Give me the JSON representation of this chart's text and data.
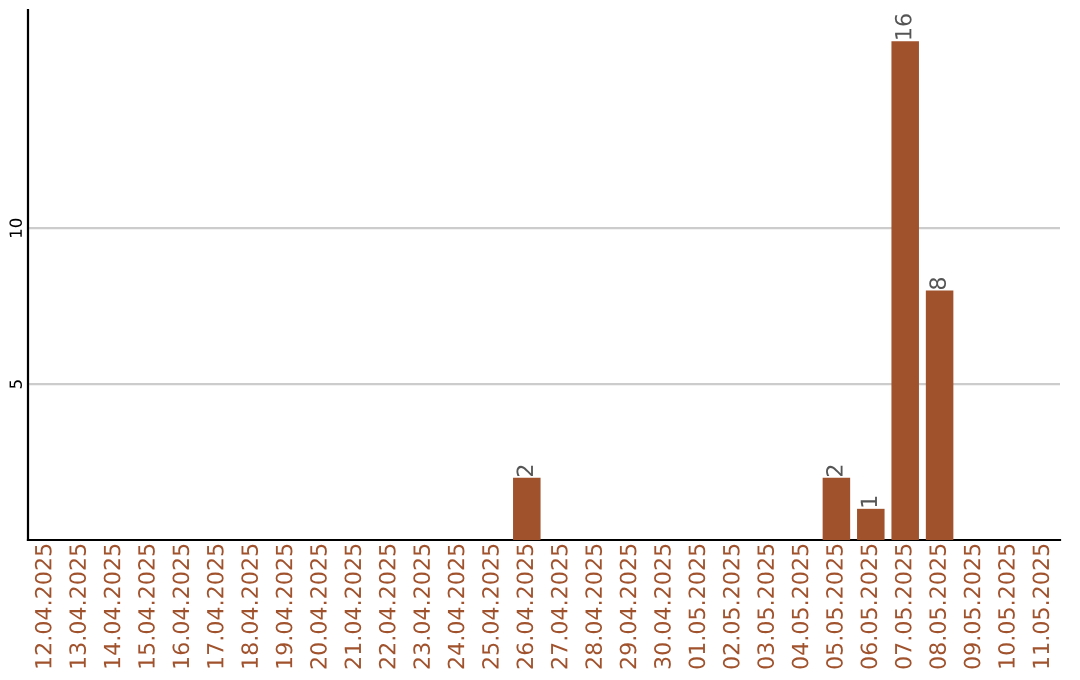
{
  "chart_data": {
    "type": "bar",
    "categories": [
      "12.04.2025",
      "13.04.2025",
      "14.04.2025",
      "15.04.2025",
      "16.04.2025",
      "17.04.2025",
      "18.04.2025",
      "19.04.2025",
      "20.04.2025",
      "21.04.2025",
      "22.04.2025",
      "23.04.2025",
      "24.04.2025",
      "25.04.2025",
      "26.04.2025",
      "27.04.2025",
      "28.04.2025",
      "29.04.2025",
      "30.04.2025",
      "01.05.2025",
      "02.05.2025",
      "03.05.2025",
      "04.05.2025",
      "05.05.2025",
      "06.05.2025",
      "07.05.2025",
      "08.05.2025",
      "09.05.2025",
      "10.05.2025",
      "11.05.2025"
    ],
    "values": [
      0,
      0,
      0,
      0,
      0,
      0,
      0,
      0,
      0,
      0,
      0,
      0,
      0,
      0,
      2,
      0,
      0,
      0,
      0,
      0,
      0,
      0,
      0,
      2,
      1,
      16,
      8,
      0,
      0,
      0
    ],
    "value_labels": [
      null,
      null,
      null,
      null,
      null,
      null,
      null,
      null,
      null,
      null,
      null,
      null,
      null,
      null,
      "2",
      null,
      null,
      null,
      null,
      null,
      null,
      null,
      null,
      "2",
      "1",
      "16",
      "8",
      null,
      null,
      null
    ],
    "color": "#a0522d",
    "ylim": [
      0,
      17
    ],
    "yticks": [
      5,
      10
    ],
    "grid": "y"
  }
}
